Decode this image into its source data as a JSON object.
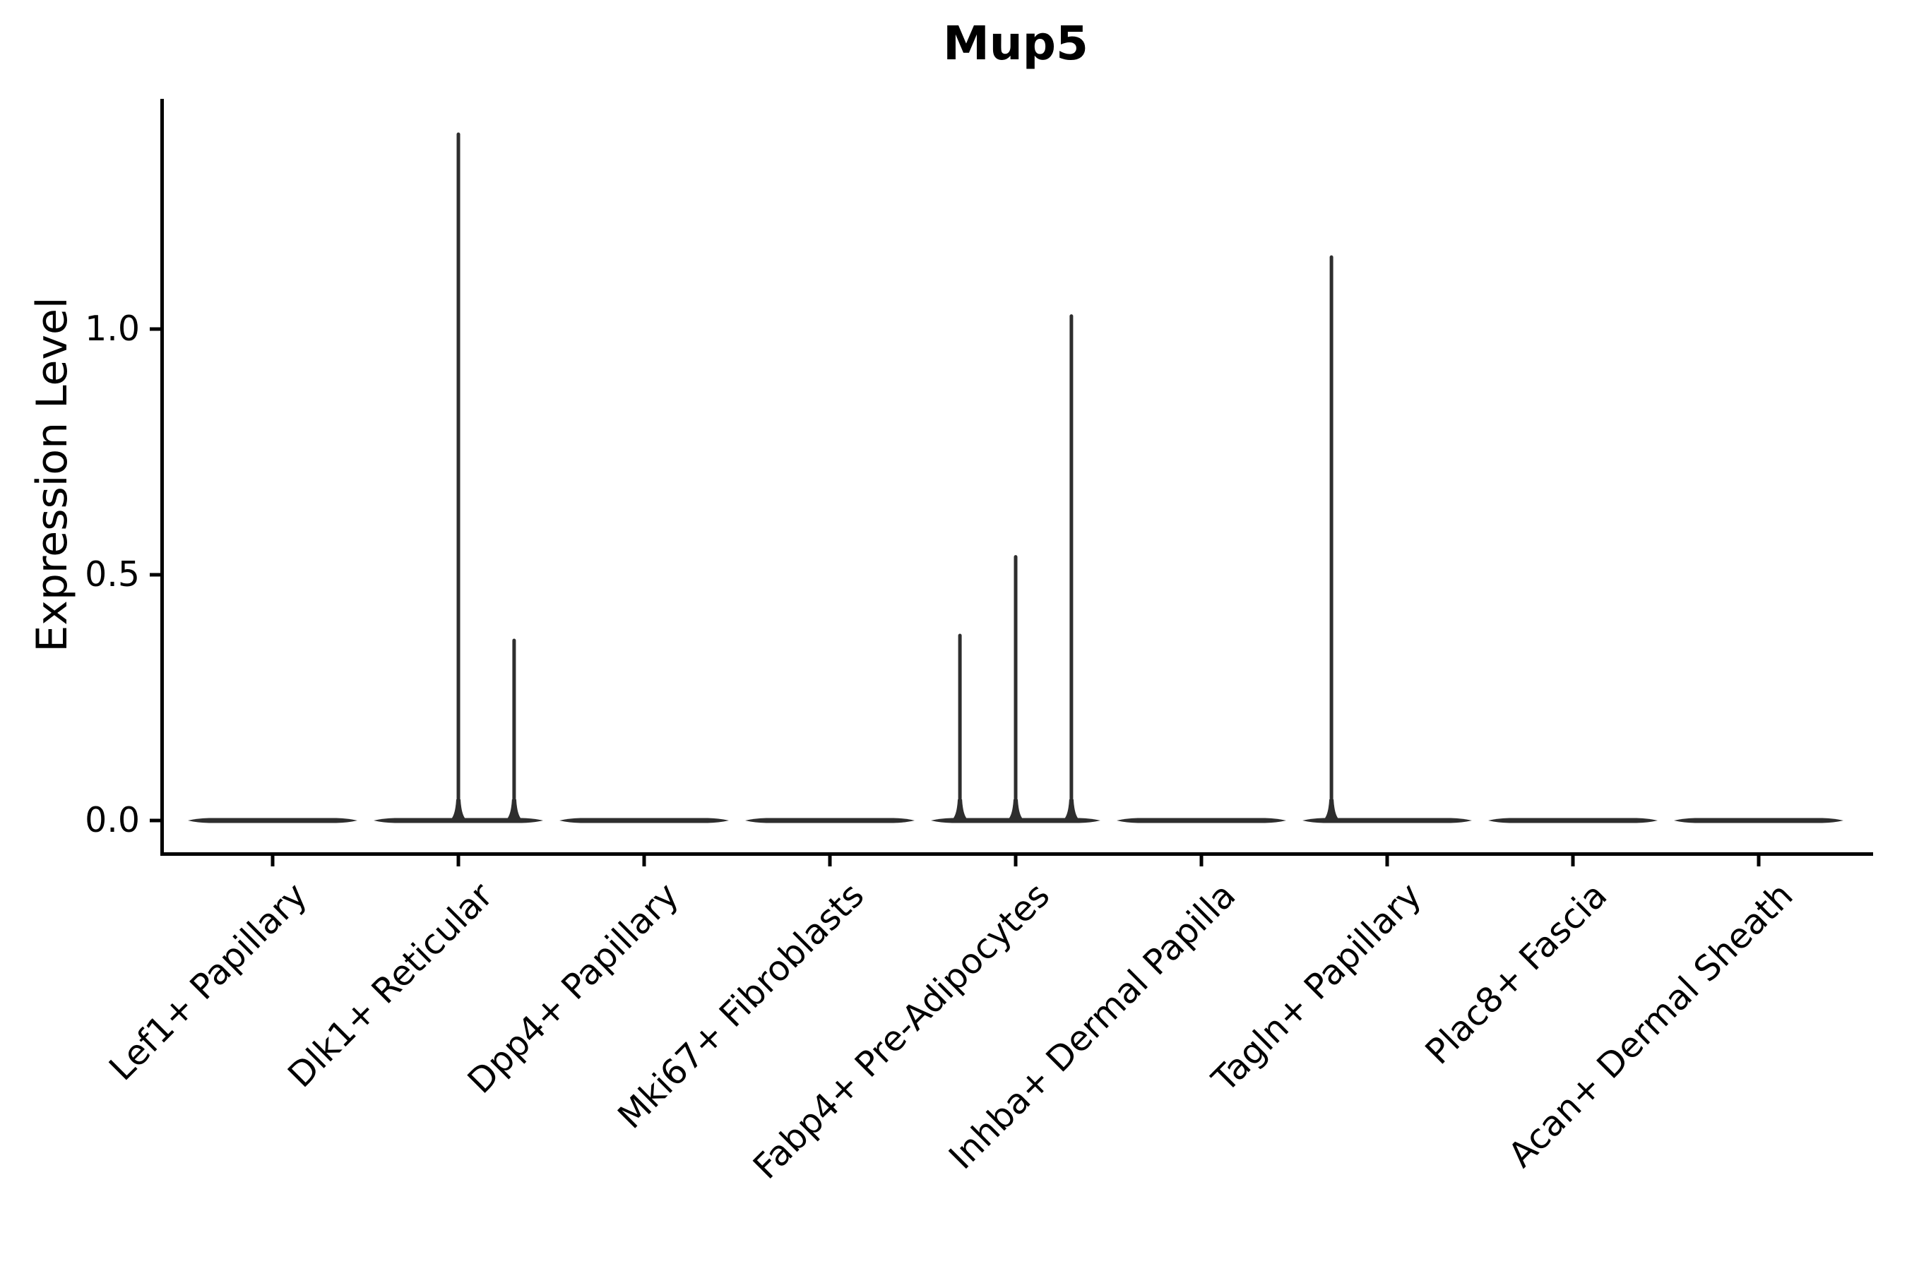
{
  "chart_data": {
    "type": "violin",
    "title": "Mup5",
    "xlabel": "",
    "ylabel": "Expression Level",
    "grid": false,
    "legend": null,
    "ylim": [
      -0.07,
      1.47
    ],
    "xlim": [
      -0.6,
      8.6
    ],
    "y_ticks": [
      {
        "label": "0.0",
        "value": 0.0
      },
      {
        "label": "0.5",
        "value": 0.5
      },
      {
        "label": "1.0",
        "value": 1.0
      }
    ],
    "categories": [
      "Lef1+ Papillary",
      "Dlk1+ Reticular",
      "Dpp4+ Papillary",
      "Mki67+ Fibroblasts",
      "Fabp4+ Pre-Adipocytes",
      "Inhba+ Dermal Papilla",
      "Tagln+ Papillary",
      "Plac8+ Fascia",
      "Acan+ Dermal Sheath"
    ],
    "violins": [
      {
        "category": "Lef1+ Papillary",
        "spikes": []
      },
      {
        "category": "Dlk1+ Reticular",
        "spikes": [
          {
            "offset": 0.0,
            "value": 1.4
          },
          {
            "offset": 0.3,
            "value": 0.37
          }
        ]
      },
      {
        "category": "Dpp4+ Papillary",
        "spikes": []
      },
      {
        "category": "Mki67+ Fibroblasts",
        "spikes": []
      },
      {
        "category": "Fabp4+ Pre-Adipocytes",
        "spikes": [
          {
            "offset": -0.3,
            "value": 0.38
          },
          {
            "offset": 0.0,
            "value": 0.54
          },
          {
            "offset": 0.3,
            "value": 1.03
          }
        ]
      },
      {
        "category": "Inhba+ Dermal Papilla",
        "spikes": []
      },
      {
        "category": "Tagln+ Papillary",
        "spikes": [
          {
            "offset": -0.3,
            "value": 1.15
          }
        ]
      },
      {
        "category": "Plac8+ Fascia",
        "spikes": []
      },
      {
        "category": "Acan+ Dermal Sheath",
        "spikes": []
      }
    ],
    "colors": {
      "violin": "#2e2e2e",
      "axis": "#000000",
      "text": "#000000",
      "background": "#ffffff"
    }
  }
}
